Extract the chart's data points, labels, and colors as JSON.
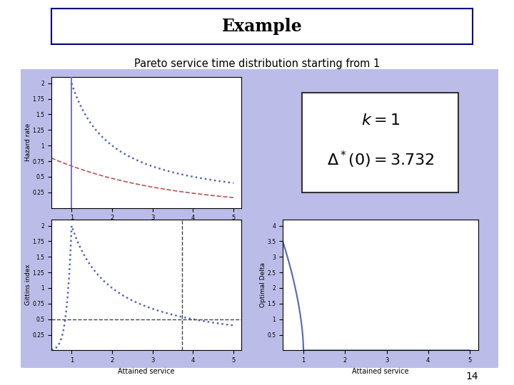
{
  "title": "Example",
  "subtitle": "Pareto service time distribution starting from 1",
  "k": 1,
  "delta_star": 3.732,
  "background_color": "#bbbde8",
  "plot_bg": "#ffffff",
  "page_number": "14",
  "title_bg": "#ffffff",
  "title_border": "#00007a",
  "curve_blue": "#5566bb",
  "curve_red": "#bb5555",
  "dashes_color": "#444444",
  "vline_color": "#6666cc",
  "text_box_border": "#333333"
}
